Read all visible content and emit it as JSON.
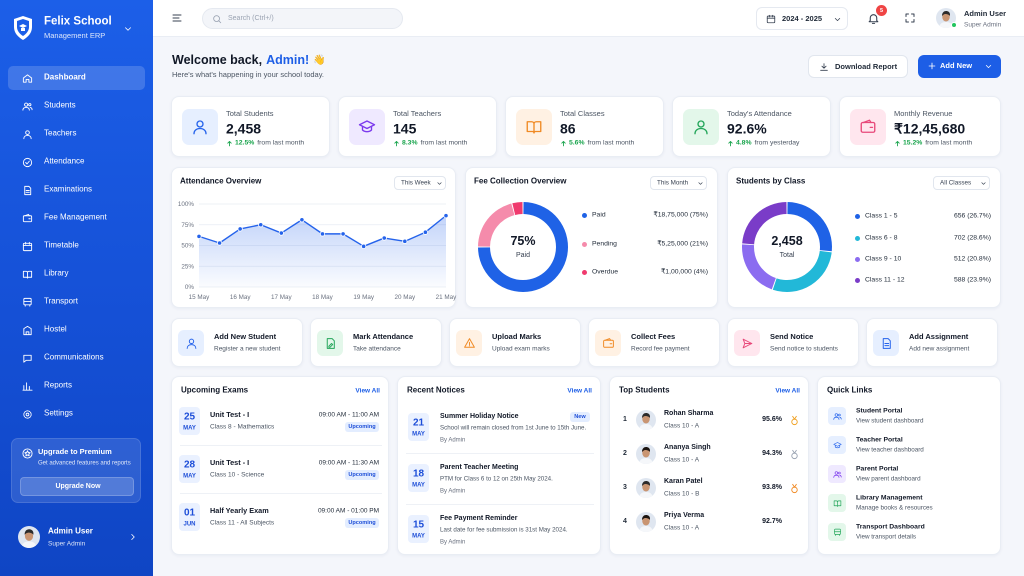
{
  "sidebar": {
    "brand": "Felix School",
    "brand_sub": "Management ERP",
    "menu": [
      "Dashboard",
      "Students",
      "Teachers",
      "Attendance",
      "Examinations",
      "Fee Management",
      "Timetable",
      "Library",
      "Transport",
      "Hostel",
      "Communications",
      "Reports",
      "Settings"
    ],
    "upgrade": {
      "title": "Upgrade to Premium",
      "text": "Get advanced features and reports",
      "button": "Upgrade Now"
    },
    "user": {
      "name": "Admin User",
      "role": "Super Admin"
    }
  },
  "topbar": {
    "search": "Search (Ctrl+/)",
    "year": "2024 - 2025",
    "notifications": "5",
    "user": {
      "name": "Admin User",
      "role": "Super Admin"
    }
  },
  "header": {
    "welcome": "Welcome back,",
    "name": "Admin!",
    "emoji": "👋",
    "subtitle": "Here's what's happening in your school today.",
    "download": "Download Report",
    "add": "Add New"
  },
  "stats": [
    {
      "label": "Total Students",
      "value": "2,458",
      "change": "12.5%",
      "note": "from last month"
    },
    {
      "label": "Total Teachers",
      "value": "145",
      "change": "8.3%",
      "note": "from last month"
    },
    {
      "label": "Total Classes",
      "value": "86",
      "change": "5.6%",
      "note": "from last month"
    },
    {
      "label": "Today's Attendance",
      "value": "92.6%",
      "change": "4.8%",
      "note": "from yesterday"
    },
    {
      "label": "Monthly Revenue",
      "value": "₹12,45,680",
      "change": "15.2%",
      "note": "from last month"
    }
  ],
  "attendance": {
    "type": "line",
    "title": "Attendance Overview",
    "filter": "This Week",
    "categories": [
      "15 May",
      null,
      "16 May",
      null,
      "17 May",
      null,
      "18 May",
      null,
      "19 May",
      null,
      "20 May",
      null,
      "21 May"
    ],
    "values": [
      61,
      53,
      70,
      75,
      65,
      81,
      64,
      64,
      49,
      59,
      55,
      66,
      86
    ],
    "ylim": [
      0,
      100
    ],
    "yticks": [
      {
        "value": 0,
        "label": "0%"
      },
      {
        "value": 25,
        "label": "25%"
      },
      {
        "value": 50,
        "label": "50%"
      },
      {
        "value": 75,
        "label": "75%"
      },
      {
        "value": 100,
        "label": "100%"
      }
    ],
    "color": "#2563eb",
    "grid": true
  },
  "fees": {
    "type": "donut",
    "title": "Fee Collection Overview",
    "filter": "This Month",
    "center_value": "75%",
    "center_label": "Paid",
    "categories": [
      "Paid",
      "Pending",
      "Overdue"
    ],
    "values": [
      75,
      21,
      4
    ],
    "value_labels": [
      "₹18,75,000 (75%)",
      "₹5,25,000 (21%)",
      "₹1,00,000 (4%)"
    ],
    "colors": [
      "#1f62e6",
      "#f58bab",
      "#f03a6e"
    ]
  },
  "classes": {
    "type": "donut",
    "title": "Students by Class",
    "filter": "All Classes",
    "center_value": "2,458",
    "center_label": "Total",
    "categories": [
      "Class 1 - 5",
      "Class 6 - 8",
      "Class 9 - 10",
      "Class 11 - 12"
    ],
    "values": [
      26.7,
      28.6,
      20.8,
      23.9
    ],
    "value_labels": [
      "656 (26.7%)",
      "702 (28.6%)",
      "512 (20.8%)",
      "588 (23.9%)"
    ],
    "colors": [
      "#1f62e6",
      "#22b8d8",
      "#8b6cf0",
      "#7a3cc8"
    ]
  },
  "quick_actions": [
    {
      "title": "Add New Student",
      "text": "Register a new student"
    },
    {
      "title": "Mark Attendance",
      "text": "Take attendance"
    },
    {
      "title": "Upload Marks",
      "text": "Upload exam marks"
    },
    {
      "title": "Collect Fees",
      "text": "Record fee payment"
    },
    {
      "title": "Send Notice",
      "text": "Send notice to students"
    },
    {
      "title": "Add Assignment",
      "text": "Add new assignment"
    }
  ],
  "exams": {
    "title": "Upcoming Exams",
    "view_all": "View All",
    "items": [
      {
        "day": "25",
        "month": "MAY",
        "name": "Unit Test - I",
        "class": "Class 8 - Mathematics",
        "time": "09:00 AM - 11:00 AM",
        "status": "Upcoming"
      },
      {
        "day": "28",
        "month": "MAY",
        "name": "Unit Test - I",
        "class": "Class 10 - Science",
        "time": "09:00 AM - 11:30 AM",
        "status": "Upcoming"
      },
      {
        "day": "01",
        "month": "JUN",
        "name": "Half Yearly Exam",
        "class": "Class 11 - All Subjects",
        "time": "09:00 AM - 01:00 PM",
        "status": "Upcoming"
      }
    ]
  },
  "notices": {
    "title": "Recent Notices",
    "view_all": "View All",
    "items": [
      {
        "day": "21",
        "month": "MAY",
        "title": "Summer Holiday Notice",
        "text": "School will remain closed from 1st June to 15th June.",
        "author": "By Admin",
        "badge": "New"
      },
      {
        "day": "18",
        "month": "MAY",
        "title": "Parent Teacher Meeting",
        "text": "PTM for Class 6 to 12 on 25th May 2024.",
        "author": "By Admin"
      },
      {
        "day": "15",
        "month": "MAY",
        "title": "Fee Payment Reminder",
        "text": "Last date for fee submission is 31st May 2024.",
        "author": "By Admin"
      }
    ]
  },
  "top_students": {
    "title": "Top Students",
    "view_all": "View All",
    "items": [
      {
        "rank": "1",
        "name": "Rohan Sharma",
        "class": "Class 10 - A",
        "score": "95.6%"
      },
      {
        "rank": "2",
        "name": "Ananya Singh",
        "class": "Class 10 - A",
        "score": "94.3%"
      },
      {
        "rank": "3",
        "name": "Karan Patel",
        "class": "Class 10 - B",
        "score": "93.8%"
      },
      {
        "rank": "4",
        "name": "Priya Verma",
        "class": "Class 10 - A",
        "score": "92.7%"
      }
    ]
  },
  "quick_links": {
    "title": "Quick Links",
    "items": [
      {
        "title": "Student Portal",
        "text": "View student dashboard"
      },
      {
        "title": "Teacher Portal",
        "text": "View teacher dashboard"
      },
      {
        "title": "Parent Portal",
        "text": "View parent dashboard"
      },
      {
        "title": "Library Management",
        "text": "Manage books & resources"
      },
      {
        "title": "Transport Dashboard",
        "text": "View transport details"
      }
    ]
  }
}
